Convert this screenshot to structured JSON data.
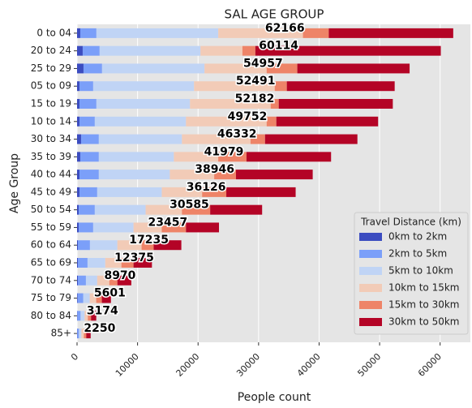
{
  "chart_data": {
    "type": "stacked_barh",
    "title": "SAL AGE GROUP",
    "x_label": "People count",
    "y_label": "Age Group",
    "legend_title": "Travel Distance (km)",
    "legend": "lower right",
    "grid": true,
    "categories": [
      "0 to 04",
      "20 to 24",
      "25 to 29",
      "05 to 09",
      "15 to 19",
      "10 to 14",
      "30 to 34",
      "35 to 39",
      "40 to 44",
      "45 to 49",
      "50 to 54",
      "55 to 59",
      "60 to 64",
      "65 to 69",
      "70 to 74",
      "75 to 79",
      "80 to 84",
      "85+"
    ],
    "totals": [
      62166,
      60114,
      54957,
      52491,
      52182,
      49752,
      46332,
      41979,
      38946,
      36126,
      30585,
      23457,
      17235,
      12375,
      8970,
      5601,
      3174,
      2250
    ],
    "series": [
      {
        "name": "0km to 2km",
        "color": "#3b4cc0",
        "values": [
          533,
          933,
          1067,
          400,
          400,
          400,
          667,
          533,
          400,
          400,
          267,
          267,
          133,
          133,
          133,
          100,
          50,
          50
        ]
      },
      {
        "name": "2km to 5km",
        "color": "#7b9ff9",
        "values": [
          2667,
          2800,
          3067,
          2267,
          2800,
          2533,
          2933,
          3067,
          3200,
          2933,
          2667,
          2400,
          2000,
          1600,
          1333,
          933,
          533,
          267
        ]
      },
      {
        "name": "5km to 10km",
        "color": "#c0d4f5",
        "values": [
          20133,
          16667,
          16933,
          16667,
          15467,
          15067,
          13733,
          12400,
          11733,
          10667,
          8400,
          6667,
          4533,
          2933,
          1867,
          1067,
          667,
          400
        ]
      },
      {
        "name": "10km to 15km",
        "color": "#f2cbb7",
        "values": [
          14000,
          6933,
          10267,
          13333,
          13333,
          13333,
          11333,
          7333,
          7333,
          6667,
          6000,
          4667,
          4000,
          2667,
          2000,
          1067,
          533,
          400
        ]
      },
      {
        "name": "15km to 30km",
        "color": "#ee8468",
        "values": [
          4267,
          2133,
          5067,
          2000,
          1333,
          1600,
          2400,
          4667,
          3600,
          4000,
          4667,
          4000,
          2000,
          2000,
          1333,
          933,
          533,
          400
        ]
      },
      {
        "name": "30km to 50km",
        "color": "#b40426",
        "values": [
          20566,
          30648,
          18556,
          17824,
          18849,
          16819,
          15266,
          13979,
          12680,
          11459,
          8584,
          5456,
          4569,
          3042,
          2304,
          1501,
          858,
          733
        ]
      }
    ],
    "xlim": [
      0,
      65000
    ],
    "xticks": [
      0,
      10000,
      20000,
      30000,
      40000,
      50000,
      60000
    ]
  }
}
